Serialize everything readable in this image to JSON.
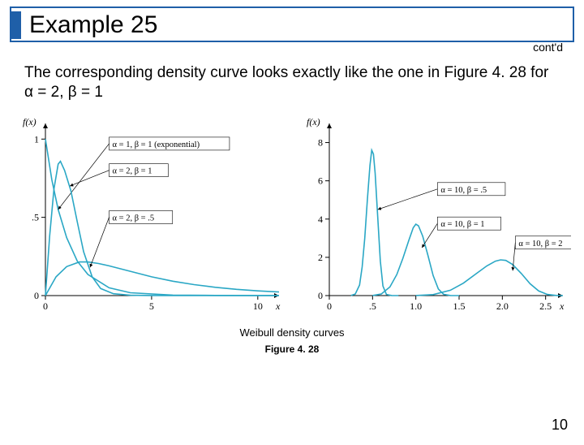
{
  "header": {
    "title": "Example 25",
    "contd": "cont'd"
  },
  "body": {
    "text": "The corresponding density curve looks exactly like the one in Figure 4. 28 for α = 2, β = 1"
  },
  "caption": {
    "line1": "Weibull density curves",
    "line2": "Figure 4. 28"
  },
  "page": "10",
  "chart_left": {
    "type": "line",
    "lineColor": "#2aa7c5",
    "axisColor": "#000000",
    "textColor": "#000000",
    "bgColor": "#ffffff",
    "ylabel": "f(x)",
    "xlabel": "x",
    "xticks": [
      0,
      5,
      10
    ],
    "yticks": [
      0,
      0.5,
      1
    ],
    "ytickLabels": [
      "0",
      ".5",
      "1"
    ],
    "xlim": [
      0,
      11
    ],
    "ylim": [
      0,
      1.1
    ],
    "curves": [
      {
        "label": "α = 1, β = 1 (exponential)",
        "labelPos": [
          3.0,
          0.95
        ],
        "arrowTo": [
          0.6,
          0.55
        ],
        "pts": [
          [
            0,
            1.0
          ],
          [
            0.3,
            0.74
          ],
          [
            0.6,
            0.55
          ],
          [
            1,
            0.37
          ],
          [
            1.5,
            0.22
          ],
          [
            2,
            0.135
          ],
          [
            3,
            0.05
          ],
          [
            4,
            0.018
          ],
          [
            6,
            0.003
          ],
          [
            8,
            0.001
          ],
          [
            10,
            0.0005
          ],
          [
            11,
            0.0003
          ]
        ]
      },
      {
        "label": "α = 2, β = 1",
        "labelPos": [
          3.0,
          0.78
        ],
        "arrowTo": [
          1.15,
          0.7
        ],
        "pts": [
          [
            0,
            0
          ],
          [
            0.2,
            0.38
          ],
          [
            0.4,
            0.68
          ],
          [
            0.6,
            0.84
          ],
          [
            0.707,
            0.858
          ],
          [
            0.9,
            0.8
          ],
          [
            1.2,
            0.67
          ],
          [
            1.5,
            0.47
          ],
          [
            1.8,
            0.28
          ],
          [
            2.2,
            0.12
          ],
          [
            2.6,
            0.045
          ],
          [
            3.2,
            0.012
          ],
          [
            4,
            0.002
          ],
          [
            5,
            0.0004
          ],
          [
            6,
            0.0001
          ],
          [
            8,
            5e-05
          ],
          [
            11,
            2e-05
          ]
        ]
      },
      {
        "label": "α = 2, β = .5",
        "labelPos": [
          3.0,
          0.48
        ],
        "arrowTo": [
          2.1,
          0.18
        ],
        "pts": [
          [
            0,
            0
          ],
          [
            0.5,
            0.12
          ],
          [
            1,
            0.185
          ],
          [
            1.6,
            0.215
          ],
          [
            2,
            0.215
          ],
          [
            2.5,
            0.205
          ],
          [
            3,
            0.19
          ],
          [
            4,
            0.155
          ],
          [
            5,
            0.12
          ],
          [
            6,
            0.092
          ],
          [
            7,
            0.07
          ],
          [
            8,
            0.053
          ],
          [
            9,
            0.04
          ],
          [
            10,
            0.03
          ],
          [
            11,
            0.023
          ]
        ]
      }
    ]
  },
  "chart_right": {
    "type": "line",
    "lineColor": "#2aa7c5",
    "axisColor": "#000000",
    "textColor": "#000000",
    "bgColor": "#ffffff",
    "ylabel": "f(x)",
    "xlabel": "x",
    "xticks": [
      0,
      0.5,
      1.0,
      1.5,
      2.0,
      2.5
    ],
    "xtickLabels": [
      "0",
      ".5",
      "1.0",
      "1.5",
      "2.0",
      "2.5"
    ],
    "yticks": [
      0,
      2,
      4,
      6,
      8
    ],
    "xlim": [
      0,
      2.7
    ],
    "ylim": [
      0,
      9
    ],
    "curves": [
      {
        "label": "α = 10, β = .5",
        "labelPos": [
          1.25,
          5.4
        ],
        "arrowTo": [
          0.56,
          4.5
        ],
        "pts": [
          [
            0.25,
            0.005
          ],
          [
            0.3,
            0.08
          ],
          [
            0.35,
            0.55
          ],
          [
            0.38,
            1.5
          ],
          [
            0.41,
            3.0
          ],
          [
            0.44,
            5.0
          ],
          [
            0.47,
            6.8
          ],
          [
            0.49,
            7.6
          ],
          [
            0.51,
            7.4
          ],
          [
            0.53,
            6.4
          ],
          [
            0.56,
            4.1
          ],
          [
            0.59,
            1.8
          ],
          [
            0.62,
            0.5
          ],
          [
            0.66,
            0.06
          ],
          [
            0.72,
            0.003
          ],
          [
            0.8,
            0.0005
          ]
        ]
      },
      {
        "label": "α = 10, β = 1",
        "labelPos": [
          1.25,
          3.6
        ],
        "arrowTo": [
          1.07,
          2.5
        ],
        "pts": [
          [
            0.5,
            0.005
          ],
          [
            0.6,
            0.08
          ],
          [
            0.7,
            0.45
          ],
          [
            0.78,
            1.1
          ],
          [
            0.85,
            1.95
          ],
          [
            0.92,
            2.9
          ],
          [
            0.97,
            3.55
          ],
          [
            1.0,
            3.73
          ],
          [
            1.03,
            3.65
          ],
          [
            1.08,
            3.1
          ],
          [
            1.14,
            2.1
          ],
          [
            1.2,
            1.05
          ],
          [
            1.26,
            0.35
          ],
          [
            1.32,
            0.07
          ],
          [
            1.4,
            0.005
          ],
          [
            1.5,
            0.0005
          ]
        ]
      },
      {
        "label": "α = 10, β = 2",
        "labelPos": [
          2.15,
          2.6
        ],
        "arrowTo": [
          2.12,
          1.3
        ],
        "pts": [
          [
            1.0,
            0.003
          ],
          [
            1.2,
            0.05
          ],
          [
            1.4,
            0.28
          ],
          [
            1.55,
            0.65
          ],
          [
            1.7,
            1.15
          ],
          [
            1.82,
            1.55
          ],
          [
            1.92,
            1.8
          ],
          [
            1.98,
            1.87
          ],
          [
            2.04,
            1.84
          ],
          [
            2.12,
            1.62
          ],
          [
            2.22,
            1.15
          ],
          [
            2.32,
            0.62
          ],
          [
            2.42,
            0.24
          ],
          [
            2.52,
            0.06
          ],
          [
            2.62,
            0.008
          ],
          [
            2.7,
            0.001
          ]
        ]
      }
    ]
  }
}
